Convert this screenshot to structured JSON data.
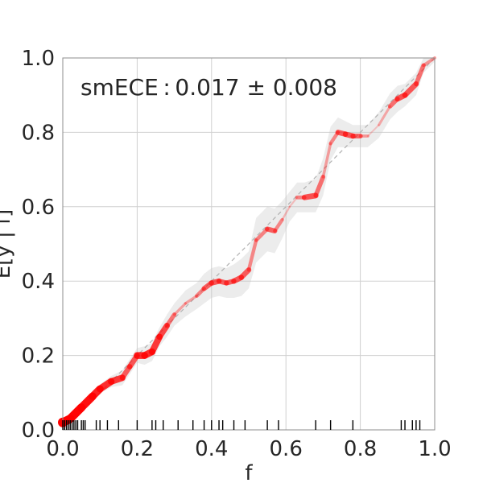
{
  "chart_data": {
    "type": "line",
    "title": "",
    "xlabel": "f",
    "ylabel": "E[y | f]",
    "xlim": [
      0.0,
      1.0
    ],
    "ylim": [
      0.0,
      1.0
    ],
    "x_ticks": [
      "0.0",
      "0.2",
      "0.4",
      "0.6",
      "0.8",
      "1.0"
    ],
    "y_ticks": [
      "0.0",
      "0.2",
      "0.4",
      "0.6",
      "0.8",
      "1.0"
    ],
    "grid": true,
    "annotation": "smECE : 0.017 ± 0.008",
    "colors": {
      "curve": "#ff0000",
      "band": "#c8c8c8",
      "diagonal": "#b0b0b0",
      "rug": "#000000"
    },
    "series": [
      {
        "x": [
          0.0,
          0.02,
          0.05,
          0.08,
          0.1,
          0.13,
          0.16,
          0.18,
          0.2,
          0.22,
          0.24,
          0.26,
          0.28,
          0.3,
          0.33,
          0.36,
          0.38,
          0.4,
          0.42,
          0.44,
          0.46,
          0.48,
          0.5,
          0.52,
          0.55,
          0.57,
          0.59,
          0.61,
          0.63,
          0.65,
          0.68,
          0.7,
          0.72,
          0.74,
          0.76,
          0.78,
          0.8,
          0.82,
          0.85,
          0.88,
          0.9,
          0.92,
          0.95,
          0.97,
          1.0
        ],
        "y": [
          0.02,
          0.03,
          0.06,
          0.09,
          0.11,
          0.13,
          0.14,
          0.17,
          0.2,
          0.2,
          0.21,
          0.25,
          0.28,
          0.31,
          0.34,
          0.36,
          0.38,
          0.395,
          0.4,
          0.395,
          0.4,
          0.41,
          0.43,
          0.51,
          0.54,
          0.535,
          0.565,
          0.6,
          0.625,
          0.625,
          0.63,
          0.68,
          0.77,
          0.8,
          0.795,
          0.79,
          0.79,
          0.79,
          0.82,
          0.87,
          0.89,
          0.9,
          0.93,
          0.98,
          1.0
        ],
        "band": [
          0.01,
          0.01,
          0.01,
          0.012,
          0.012,
          0.015,
          0.02,
          0.02,
          0.02,
          0.025,
          0.025,
          0.025,
          0.03,
          0.03,
          0.035,
          0.035,
          0.04,
          0.04,
          0.04,
          0.04,
          0.045,
          0.05,
          0.05,
          0.06,
          0.06,
          0.06,
          0.05,
          0.04,
          0.04,
          0.04,
          0.045,
          0.05,
          0.045,
          0.04,
          0.035,
          0.03,
          0.03,
          0.03,
          0.035,
          0.035,
          0.035,
          0.03,
          0.03,
          0.02,
          0.01
        ],
        "density": [
          1,
          1,
          0.95,
          0.9,
          0.8,
          0.75,
          0.7,
          0.4,
          0.75,
          0.8,
          0.75,
          0.7,
          0.6,
          0.25,
          0.15,
          0.25,
          0.45,
          0.6,
          0.55,
          0.5,
          0.55,
          0.6,
          0.5,
          0.15,
          0.55,
          0.5,
          0.15,
          0.05,
          0.1,
          0.6,
          0.6,
          0.3,
          0.15,
          0.5,
          0.6,
          0.55,
          0.45,
          0.05,
          0.05,
          0.3,
          0.6,
          0.6,
          0.55,
          0.35,
          0.2
        ]
      }
    ],
    "rug": [
      0.0,
      0.005,
      0.01,
      0.015,
      0.02,
      0.025,
      0.03,
      0.035,
      0.04,
      0.05,
      0.055,
      0.06,
      0.09,
      0.1,
      0.12,
      0.15,
      0.2,
      0.24,
      0.25,
      0.27,
      0.31,
      0.35,
      0.38,
      0.4,
      0.42,
      0.43,
      0.46,
      0.49,
      0.55,
      0.58,
      0.68,
      0.72,
      0.78,
      0.91,
      0.92,
      0.94,
      0.95,
      0.96
    ]
  }
}
